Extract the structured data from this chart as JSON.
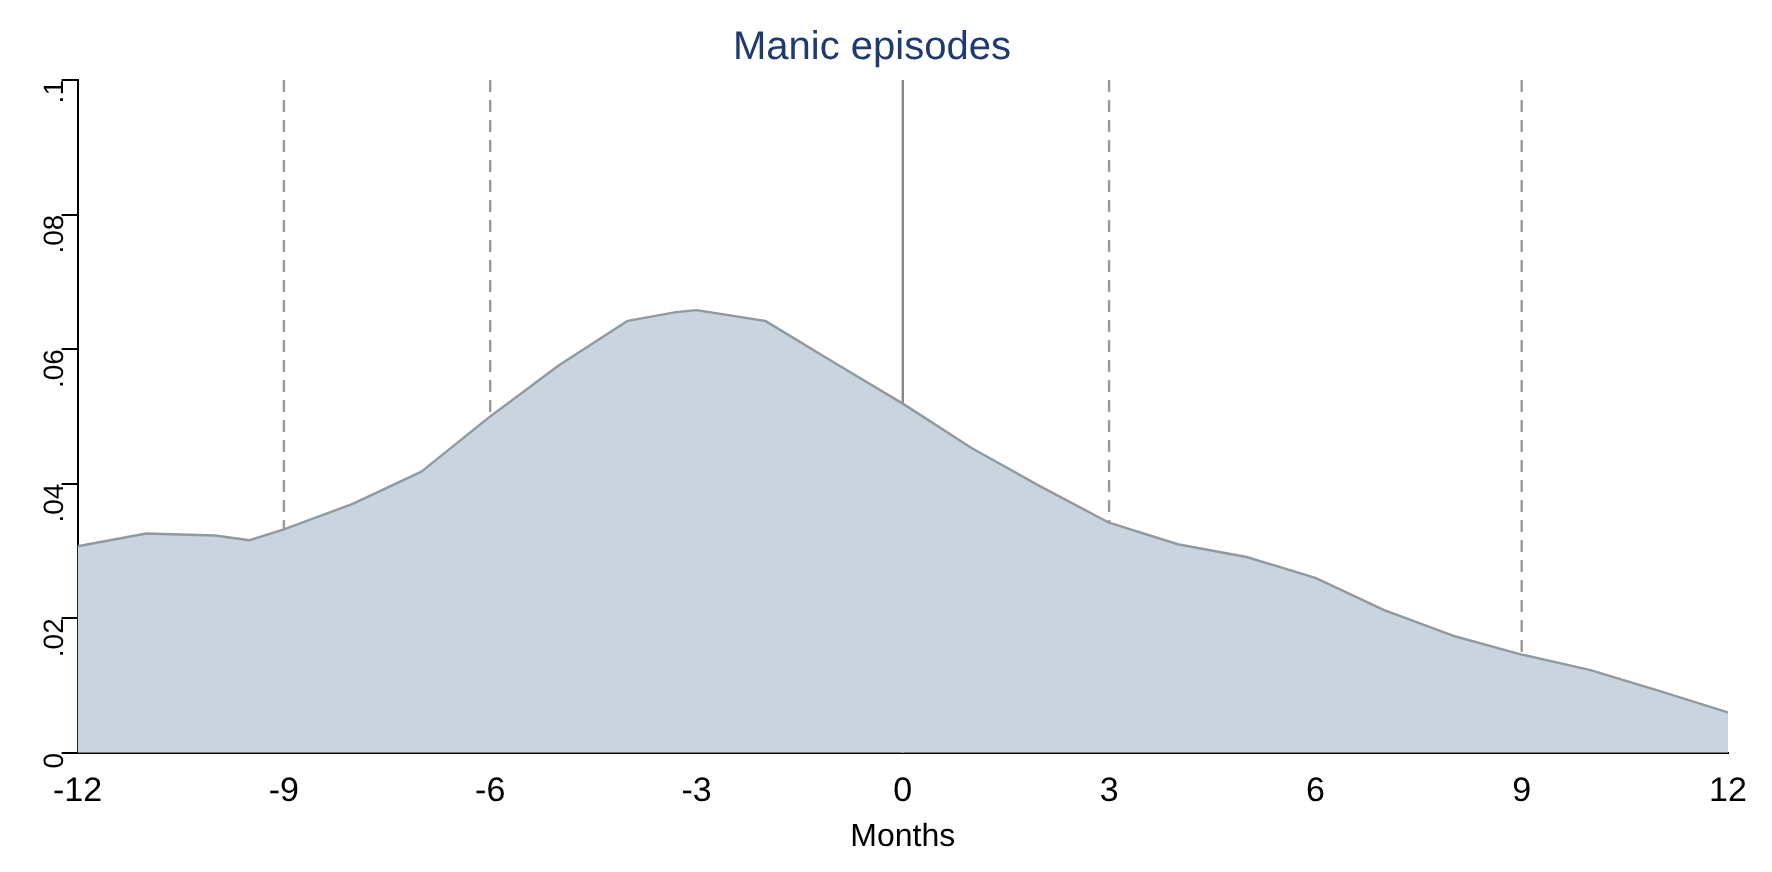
{
  "chart_data": {
    "type": "area",
    "title": "Manic episodes",
    "xlabel": "Months",
    "x": [
      -12,
      -11,
      -10,
      -9.5,
      -9,
      -8,
      -7,
      -6,
      -5,
      -4,
      -3.3,
      -3,
      -2,
      -1,
      0,
      1,
      2,
      3,
      4,
      5,
      6,
      7,
      8,
      9,
      10,
      11,
      12
    ],
    "series": [
      {
        "color": "#c9d4de",
        "values": [
          0.0307,
          0.0326,
          0.0323,
          0.0316,
          0.0332,
          0.037,
          0.0418,
          0.05,
          0.0576,
          0.0642,
          0.0655,
          0.0658,
          0.0642,
          0.058,
          0.0519,
          0.0453,
          0.0396,
          0.0342,
          0.031,
          0.0291,
          0.026,
          0.0212,
          0.0174,
          0.0146,
          0.0123,
          0.0092,
          0.006
        ]
      }
    ],
    "xlim": [
      -12,
      12
    ],
    "xticks": [
      -12,
      -9,
      -6,
      -3,
      0,
      3,
      6,
      9,
      12
    ],
    "ylim": [
      0,
      0.1
    ],
    "yticks": [
      0,
      {
        "value": 0.02,
        "label": ".02"
      },
      {
        "value": 0.04,
        "label": ".04"
      },
      {
        "value": 0.06,
        "label": ".06"
      },
      {
        "value": 0.08,
        "label": ".08"
      },
      {
        "value": 0.1,
        "label": ".1"
      }
    ],
    "ref_lines": [
      {
        "axis": "x",
        "value": -9,
        "line_style": "dashed",
        "color": "#999999"
      },
      {
        "axis": "x",
        "value": -6,
        "line_style": "dashed",
        "color": "#999999"
      },
      {
        "axis": "x",
        "value": 0,
        "line_style": "solid",
        "color": "#888888"
      },
      {
        "axis": "x",
        "value": 3,
        "line_style": "dashed",
        "color": "#999999"
      },
      {
        "axis": "x",
        "value": 9,
        "line_style": "dashed",
        "color": "#999999"
      }
    ],
    "grid": false,
    "legend": false
  }
}
